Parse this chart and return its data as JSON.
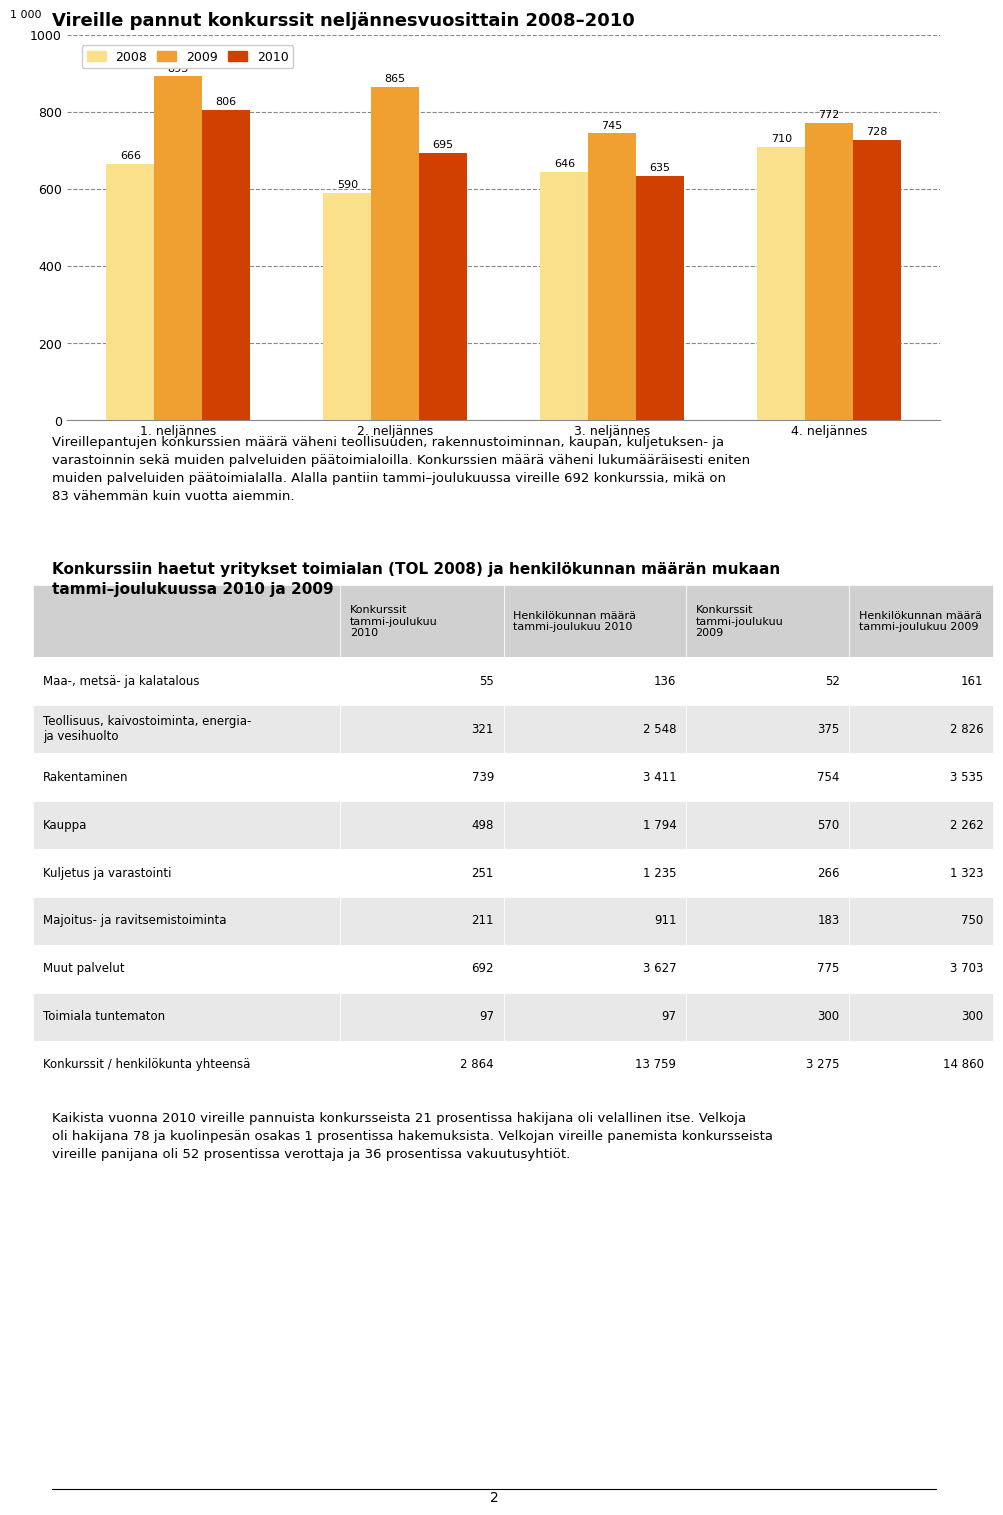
{
  "chart_title": "Vireille pannut konkurssit neljännesvuosittain 2008–2010",
  "chart_ylabel_top": "1 000",
  "quarters": [
    "1. neljännes",
    "2. neljännes",
    "3. neljännes",
    "4. neljännes"
  ],
  "series": {
    "2008": [
      666,
      590,
      646,
      710
    ],
    "2009": [
      893,
      865,
      745,
      772
    ],
    "2010": [
      806,
      695,
      635,
      728
    ]
  },
  "bar_colors": {
    "2008": "#FAE08A",
    "2009": "#F0A030",
    "2010": "#D04000"
  },
  "ylim": [
    0,
    1000
  ],
  "yticks": [
    0,
    200,
    400,
    600,
    800,
    1000
  ],
  "grid_color": "#888888",
  "chart_bg": "#FFFFFF",
  "plot_bg": "#FFFFFF",
  "para1": "Vireillepantujen konkurssien määrä väheni teollisuuden, rakennustoiminnan, kaupan, kuljetuksen- ja\nvarastoinnin sekä muiden palveluiden päätoimialoilla. Konkurssien määrä väheni lukumääräisesti eniten\nmuiden palveluiden päätoimialalla. Alalla pantiin tammi–joulukuussa vireille 692 konkurssia, mikä on\n83 vähemmän kuin vuotta aiemmin.",
  "table_title": "Konkurssiin haetut yritykset toimialan (TOL 2008) ja henkilökunnan määrän mukaan\ntammi–joulukuussa 2010 ja 2009",
  "col_headers": [
    "Konkurssit\ntammi-joulukuu\n2010",
    "Henkilökunnan määrä\ntammi-joulukuu 2010",
    "Konkurssit\ntammi-joulukuu\n2009",
    "Henkilökunnan määrä\ntammi-joulukuu 2009"
  ],
  "row_labels": [
    "Maa-, metsä- ja kalatalous",
    "Teollisuus, kaivostoiminta, energia-\nja vesihuolto",
    "Rakentaminen",
    "Kauppa",
    "Kuljetus ja varastointi",
    "Majoitus- ja ravitsemistoiminta",
    "Muut palvelut",
    "Toimiala tuntematon",
    "Konkurssit / henkilökunta yhteensä"
  ],
  "table_data": [
    [
      55,
      136,
      52,
      161
    ],
    [
      321,
      "2 548",
      375,
      "2 826"
    ],
    [
      739,
      "3 411",
      754,
      "3 535"
    ],
    [
      498,
      "1 794",
      570,
      "2 262"
    ],
    [
      251,
      "1 235",
      266,
      "1 323"
    ],
    [
      211,
      911,
      183,
      750
    ],
    [
      692,
      "3 627",
      775,
      "3 703"
    ],
    [
      97,
      97,
      300,
      300
    ],
    [
      "2 864",
      "13 759",
      "3 275",
      "14 860"
    ]
  ],
  "para2": "Kaikista vuonna 2010 vireille pannuista konkursseista 21 prosentissa hakijana oli velallinen itse. Velkoja\noli hakijana 78 ja kuolinpesän osakas 1 prosentissa hakemuksista. Velkojan vireille panemista konkursseista\nvireille panijana oli 52 prosentissa verottaja ja 36 prosentissa vakuutusyhtiöt.",
  "footer_page": "2"
}
